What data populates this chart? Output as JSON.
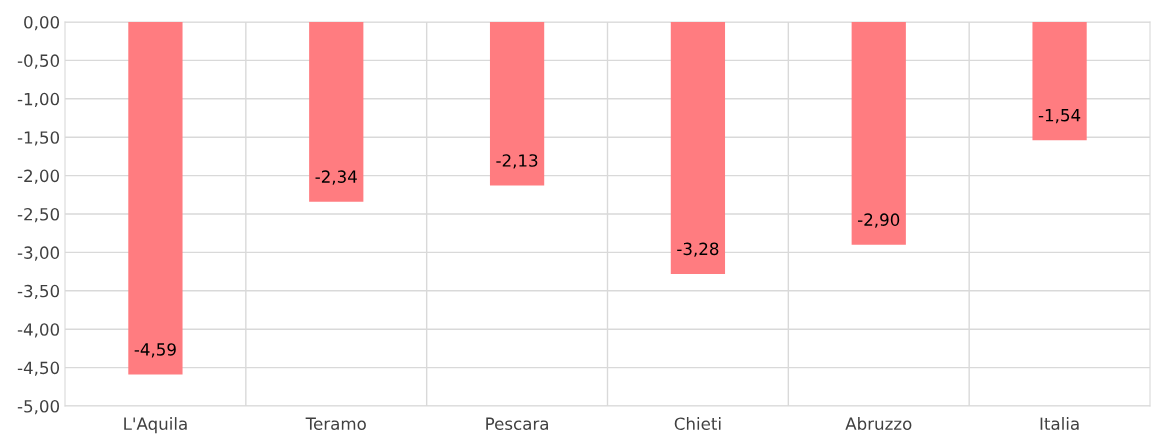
{
  "chart_data": {
    "type": "bar",
    "categories": [
      "L'Aquila",
      "Teramo",
      "Pescara",
      "Chieti",
      "Abruzzo",
      "Italia"
    ],
    "values": [
      -4.59,
      -2.34,
      -2.13,
      -3.28,
      -2.9,
      -1.54
    ],
    "value_labels": [
      "-4,59",
      "-2,34",
      "-2,13",
      "-3,28",
      "-2,90",
      "-1,54"
    ],
    "color": "#ff7c80",
    "ylim": [
      -5,
      0
    ],
    "yticks": [
      {
        "value": 0,
        "label": "0,00"
      },
      {
        "value": -0.5,
        "label": "-0,50"
      },
      {
        "value": -1,
        "label": "-1,00"
      },
      {
        "value": -1.5,
        "label": "-1,50"
      },
      {
        "value": -2,
        "label": "-2,00"
      },
      {
        "value": -2.5,
        "label": "-2,50"
      },
      {
        "value": -3,
        "label": "-3,00"
      },
      {
        "value": -3.5,
        "label": "-3,50"
      },
      {
        "value": -4,
        "label": "-4,00"
      },
      {
        "value": -4.5,
        "label": "-4,50"
      },
      {
        "value": -5,
        "label": "-5,00"
      }
    ],
    "grid": true
  }
}
